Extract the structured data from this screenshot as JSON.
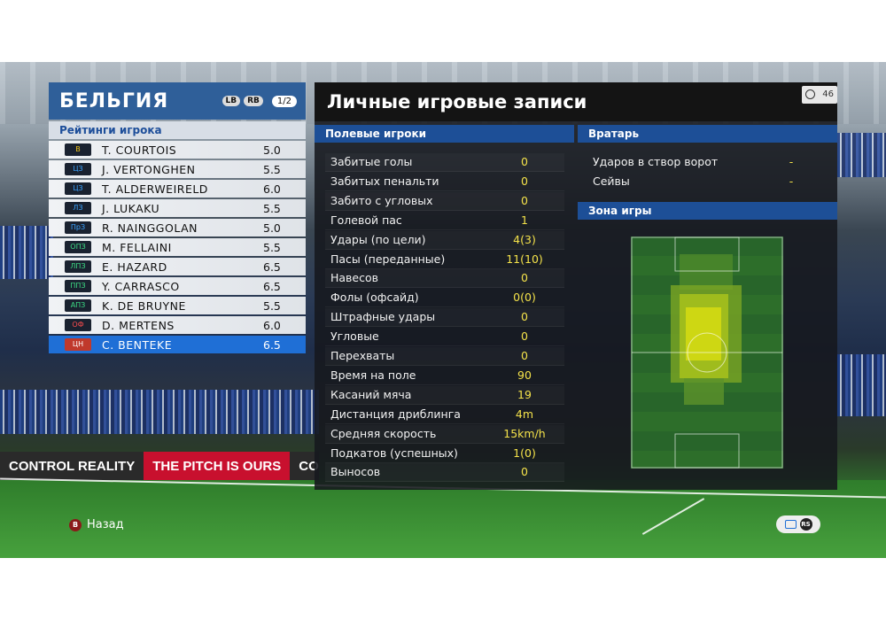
{
  "team": {
    "name": "БЕЛЬГИЯ",
    "lb_label": "LB",
    "rb_label": "RB",
    "page": "1/2",
    "ratings_header": "Рейтинги игрока",
    "players": [
      {
        "pos": "В",
        "pos_group": "gk",
        "name": "T. COURTOIS",
        "rating": "5.0"
      },
      {
        "pos": "ЦЗ",
        "pos_group": "df",
        "name": "J. VERTONGHEN",
        "rating": "5.5"
      },
      {
        "pos": "ЦЗ",
        "pos_group": "df",
        "name": "T. ALDERWEIRELD",
        "rating": "6.0"
      },
      {
        "pos": "ЛЗ",
        "pos_group": "df",
        "name": "J. LUKAKU",
        "rating": "5.5"
      },
      {
        "pos": "ПрЗ",
        "pos_group": "df",
        "name": "R. NAINGGOLAN",
        "rating": "5.0"
      },
      {
        "pos": "ОПЗ",
        "pos_group": "mf",
        "name": "M. FELLAINI",
        "rating": "5.5"
      },
      {
        "pos": "ЛПЗ",
        "pos_group": "mf",
        "name": "E. HAZARD",
        "rating": "6.5"
      },
      {
        "pos": "ППЗ",
        "pos_group": "mf",
        "name": "Y. CARRASCO",
        "rating": "6.5"
      },
      {
        "pos": "АПЗ",
        "pos_group": "mf",
        "name": "K. DE BRUYNE",
        "rating": "5.5"
      },
      {
        "pos": "ОФ",
        "pos_group": "fw",
        "name": "D. MERTENS",
        "rating": "6.0"
      },
      {
        "pos": "ЦН",
        "pos_group": "fw",
        "name": "C. BENTEKE",
        "rating": "6.5",
        "selected": true
      }
    ]
  },
  "records": {
    "title": "Личные игровые записи",
    "timer": "46",
    "field_header": "Полевые игроки",
    "stats": [
      {
        "label": "Забитые голы",
        "value": "0"
      },
      {
        "label": "Забитых пенальти",
        "value": "0"
      },
      {
        "label": "Забито с угловых",
        "value": "0"
      },
      {
        "label": "Голевой пас",
        "value": "1"
      },
      {
        "label": "Удары (по цели)",
        "value": "4(3)"
      },
      {
        "label": "Пасы (переданные)",
        "value": "11(10)"
      },
      {
        "label": "Навесов",
        "value": "0"
      },
      {
        "label": "Фолы (офсайд)",
        "value": "0(0)"
      },
      {
        "label": "Штрафные удары",
        "value": "0"
      },
      {
        "label": "Угловые",
        "value": "0"
      },
      {
        "label": "Перехваты",
        "value": "0"
      },
      {
        "label": "Время на поле",
        "value": "90"
      },
      {
        "label": "Касаний мяча",
        "value": "19"
      },
      {
        "label": "Дистанция дриблинга",
        "value": "4m"
      },
      {
        "label": "Средняя скорость",
        "value": "15km/h"
      },
      {
        "label": "Подкатов (успешных)",
        "value": "1(0)"
      },
      {
        "label": "Выносов",
        "value": "0"
      }
    ],
    "gk_header": "Вратарь",
    "gk_stats": [
      {
        "label": "Ударов в створ ворот",
        "value": "-"
      },
      {
        "label": "Сейвы",
        "value": "-"
      }
    ],
    "zone_header": "Зона игры"
  },
  "controls": {
    "back_label": "Назад",
    "b_button": "B",
    "rs_button": "RS"
  },
  "colors": {
    "panel_blue": "#2f5f99",
    "section_blue": "#1d4f97",
    "selected_row": "#1f6fd6",
    "stat_value": "#f4e24a"
  }
}
